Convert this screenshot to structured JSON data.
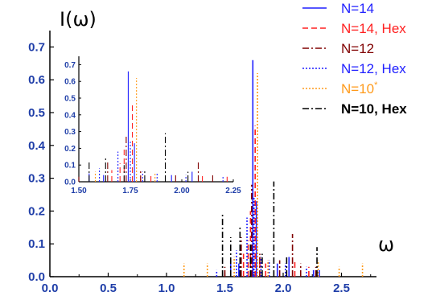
{
  "chart_data": {
    "type": "bar",
    "ylabel": "I(ω)",
    "xlabel": "ω",
    "xlim": [
      0.0,
      2.8
    ],
    "ylim": [
      0.0,
      0.75
    ],
    "x_ticks": [
      "0.0",
      "0.5",
      "1.0",
      "1.5",
      "2.0",
      "2.5"
    ],
    "y_ticks": [
      "0.0",
      "0.1",
      "0.2",
      "0.3",
      "0.4",
      "0.5",
      "0.6",
      "0.7"
    ],
    "legend": [
      {
        "name": "N=14",
        "sup": "",
        "color": "#1f1fff",
        "dash": "solid",
        "bold": false
      },
      {
        "name": "N=14, Hex",
        "sup": "",
        "color": "#ff2020",
        "dash": "dashed",
        "bold": false
      },
      {
        "name": "N=12",
        "sup": "",
        "color": "#800000",
        "dash": "dashdot",
        "bold": false
      },
      {
        "name": "N=12, Hex",
        "sup": "",
        "color": "#1f1fff",
        "dash": "dotted",
        "bold": false
      },
      {
        "name": "N=10",
        "sup": "*",
        "color": "#ff9a1a",
        "dash": "dotted",
        "bold": false
      },
      {
        "name": "N=10, Hex",
        "sup": "",
        "color": "#000000",
        "dash": "dashdot",
        "bold": true
      }
    ],
    "series": [
      {
        "name": "N=14",
        "color": "#1f1fff",
        "dash": "solid",
        "x": [
          1.74,
          1.77,
          1.55,
          1.62,
          1.95,
          2.05,
          2.26,
          2.31
        ],
        "y": [
          0.66,
          0.23,
          0.05,
          0.04,
          0.04,
          0.06,
          0.02,
          0.02
        ]
      },
      {
        "name": "N=14, Hex",
        "color": "#ff2020",
        "dash": "dashed",
        "x": [
          1.76,
          1.72,
          1.7,
          1.66,
          1.8,
          1.85,
          2.1,
          2.22
        ],
        "y": [
          0.46,
          0.2,
          0.11,
          0.07,
          0.06,
          0.04,
          0.05,
          0.03
        ]
      },
      {
        "name": "N=12",
        "color": "#800000",
        "dash": "dashdot",
        "x": [
          1.73,
          1.64,
          1.8,
          2.08,
          2.15,
          2.28,
          1.5,
          1.97
        ],
        "y": [
          0.28,
          0.12,
          0.07,
          0.13,
          0.04,
          0.03,
          0.03,
          0.05
        ]
      },
      {
        "name": "N=12, Hex",
        "color": "#1f1fff",
        "dash": "dotted",
        "x": [
          1.75,
          1.69,
          1.81,
          1.6,
          1.88,
          2.02,
          2.2,
          1.43
        ],
        "y": [
          0.24,
          0.18,
          0.06,
          0.08,
          0.05,
          0.04,
          0.03,
          0.02
        ]
      },
      {
        "name": "N=10",
        "color": "#ff9a1a",
        "dash": "dotted",
        "x": [
          1.78,
          1.15,
          1.35,
          1.58,
          2.3,
          2.48,
          2.68,
          1.87
        ],
        "y": [
          0.62,
          0.04,
          0.04,
          0.06,
          0.05,
          0.03,
          0.04,
          0.05
        ]
      },
      {
        "name": "N=10, Hex",
        "color": "#000000",
        "dash": "dashdot",
        "x": [
          1.48,
          1.63,
          1.92,
          2.29,
          1.82,
          2.03,
          1.55,
          1.72
        ],
        "y": [
          0.19,
          0.15,
          0.29,
          0.09,
          0.07,
          0.06,
          0.12,
          0.1
        ]
      }
    ],
    "inset": {
      "xlim": [
        1.5,
        2.25
      ],
      "ylim": [
        0.0,
        0.75
      ],
      "x_ticks": [
        "1.50",
        "1.75",
        "2.00",
        "2.25"
      ],
      "y_ticks": [
        "0.0",
        "0.1",
        "0.2",
        "0.3",
        "0.4",
        "0.5",
        "0.6",
        "0.7"
      ]
    }
  }
}
